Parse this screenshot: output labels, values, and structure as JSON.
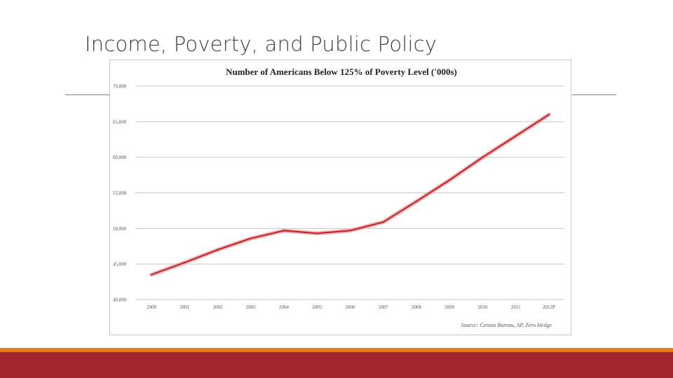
{
  "slide": {
    "title": "Income, Poverty, and Public Policy"
  },
  "colors": {
    "line": "#c0282d",
    "line_glow": "#f0a0a0",
    "grid": "#c4c4c4",
    "accent_orange": "#e07b20",
    "accent_red": "#a32530"
  },
  "chart_data": {
    "type": "line",
    "title": "Number of Americans Below 125% of Poverty Level ('000s)",
    "xlabel": "",
    "ylabel": "",
    "categories": [
      "2000",
      "2001",
      "2002",
      "2003",
      "2004",
      "2005",
      "2006",
      "2007",
      "2008",
      "2009",
      "2010",
      "2011",
      "2012P"
    ],
    "series": [
      {
        "values": [
          43500,
          45200,
          47000,
          48600,
          49700,
          49300,
          49700,
          50900,
          53800,
          56800,
          60000,
          63000,
          66000
        ]
      }
    ],
    "y_ticks": [
      "40,000",
      "45,000",
      "50,000",
      "55,000",
      "60,000",
      "65,000",
      "70,000"
    ],
    "ylim": [
      40000,
      70000
    ],
    "grid": true,
    "legend": "none",
    "source": "Source: Census Bureau, AP, Zero Hedge"
  }
}
